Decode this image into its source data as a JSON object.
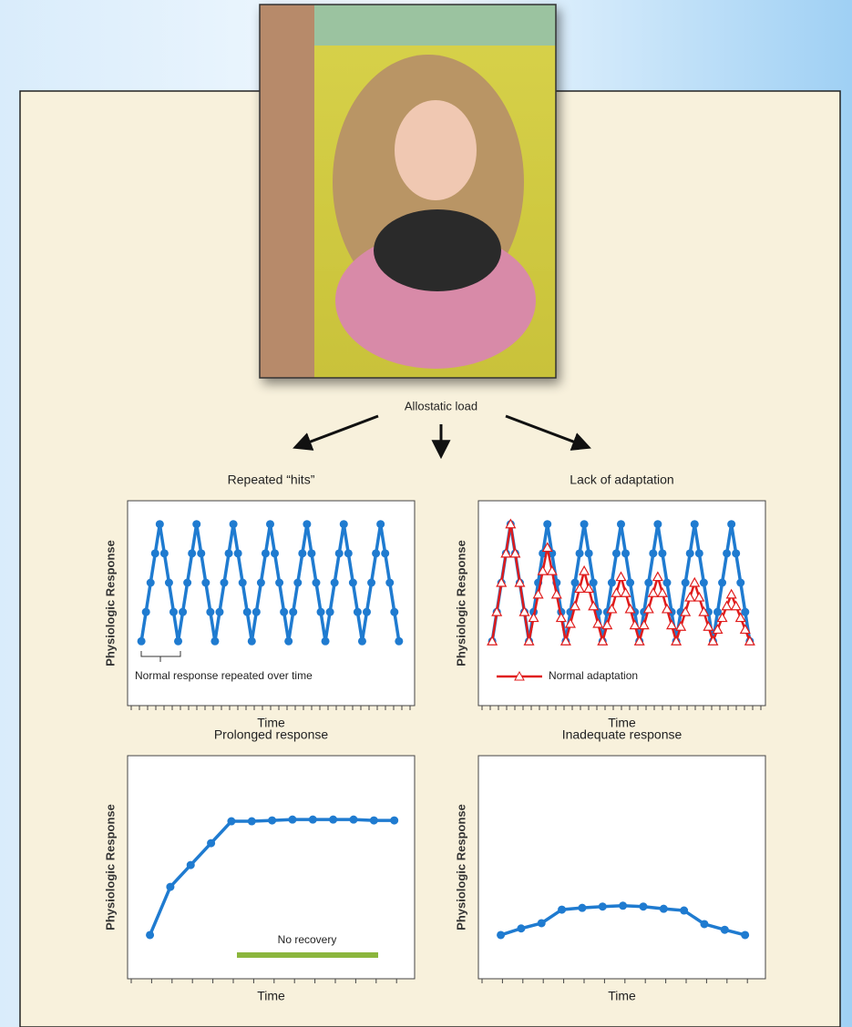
{
  "figure": {
    "label": "Allostatic load"
  },
  "chart_data": [
    {
      "type": "line",
      "title": "Repeated “hits”",
      "x_label": "Time",
      "y_label": "Physiologic Response",
      "annotation": "Normal response repeated over time",
      "x": [
        0,
        1,
        2,
        3,
        4,
        5,
        6,
        7,
        8,
        9,
        10,
        11,
        12,
        13,
        14,
        15,
        16,
        17,
        18,
        19,
        20,
        21,
        22,
        23,
        24,
        25,
        26,
        27,
        28,
        29,
        30,
        31,
        32,
        33,
        34,
        35,
        36,
        37,
        38,
        39,
        40,
        41,
        42,
        43,
        44,
        45,
        46,
        47,
        48,
        49,
        50,
        51,
        52,
        53,
        54,
        55,
        56
      ],
      "xlim": [
        -3,
        59.4
      ],
      "ylim": [
        -1.2,
        5.8
      ],
      "series": [
        {
          "color": "#1f7bd0",
          "marker": "circle",
          "values": [
            1,
            2,
            3,
            4,
            5,
            4,
            3,
            2,
            1,
            2,
            3,
            4,
            5,
            4,
            3,
            2,
            1,
            2,
            3,
            4,
            5,
            4,
            3,
            2,
            1,
            2,
            3,
            4,
            5,
            4,
            3,
            2,
            1,
            2,
            3,
            4,
            5,
            4,
            3,
            2,
            1,
            2,
            3,
            4,
            5,
            4,
            3,
            2,
            1,
            2,
            3,
            4,
            5,
            4,
            3,
            2,
            1
          ]
        }
      ]
    },
    {
      "type": "line",
      "title": "Lack of adaptation",
      "x_label": "Time",
      "y_label": "Physiologic Response",
      "legend": "bottom-left",
      "x": [
        0,
        1,
        2,
        3,
        4,
        5,
        6,
        7,
        8,
        9,
        10,
        11,
        12,
        13,
        14,
        15,
        16,
        17,
        18,
        19,
        20,
        21,
        22,
        23,
        24,
        25,
        26,
        27,
        28,
        29,
        30,
        31,
        32,
        33,
        34,
        35,
        36,
        37,
        38,
        39,
        40,
        41,
        42,
        43,
        44,
        45,
        46,
        47,
        48,
        49,
        50,
        51,
        52,
        53,
        54,
        55,
        56
      ],
      "xlim": [
        -3,
        59.4
      ],
      "ylim": [
        -1.2,
        5.8
      ],
      "series": [
        {
          "color": "#1f7bd0",
          "marker": "circle",
          "values": [
            1,
            2,
            3,
            4,
            5,
            4,
            3,
            2,
            1,
            2,
            3,
            4,
            5,
            4,
            3,
            2,
            1,
            2,
            3,
            4,
            5,
            4,
            3,
            2,
            1,
            2,
            3,
            4,
            5,
            4,
            3,
            2,
            1,
            2,
            3,
            4,
            5,
            4,
            3,
            2,
            1,
            2,
            3,
            4,
            5,
            4,
            3,
            2,
            1,
            2,
            3,
            4,
            5,
            4,
            3,
            2,
            1
          ]
        },
        {
          "name": "Normal adaptation",
          "color": "#e01b1b",
          "marker": "triangle",
          "values": [
            1,
            2,
            3,
            4,
            5,
            4,
            3,
            2,
            1,
            1.8,
            2.6,
            3.4,
            4.2,
            3.4,
            2.6,
            1.8,
            1,
            1.6,
            2.2,
            2.8,
            3.4,
            2.8,
            2.2,
            1.6,
            1,
            1.55,
            2.1,
            2.65,
            3.2,
            2.65,
            2.1,
            1.55,
            1,
            1.55,
            2.1,
            2.65,
            3.2,
            2.65,
            2.1,
            1.55,
            1,
            1.5,
            2,
            2.5,
            3,
            2.5,
            2,
            1.5,
            1,
            1.4,
            1.8,
            2.2,
            2.6,
            2.2,
            1.8,
            1.4,
            1
          ]
        }
      ]
    },
    {
      "type": "line",
      "title": "Prolonged response",
      "x_label": "Time",
      "y_label": "Physiologic Response",
      "annotation": "No recovery",
      "x": [
        0,
        1,
        2,
        3,
        4,
        5,
        6,
        7,
        8,
        9,
        10,
        11,
        12
      ],
      "xlim": [
        -1.1,
        13
      ],
      "ylim": [
        0,
        5.1
      ],
      "series": [
        {
          "color": "#1f7bd0",
          "marker": "circle",
          "values": [
            1,
            2.1,
            2.6,
            3.1,
            3.6,
            3.6,
            3.62,
            3.64,
            3.64,
            3.64,
            3.64,
            3.62,
            3.62
          ]
        }
      ]
    },
    {
      "type": "line",
      "title": "Inadequate response",
      "x_label": "Time",
      "y_label": "Physiologic Response",
      "x": [
        0,
        1,
        2,
        3,
        4,
        5,
        6,
        7,
        8,
        9,
        10,
        11,
        12
      ],
      "xlim": [
        -1.1,
        13
      ],
      "ylim": [
        0,
        5.1
      ],
      "series": [
        {
          "color": "#1f7bd0",
          "marker": "circle",
          "values": [
            1,
            1.15,
            1.27,
            1.58,
            1.62,
            1.65,
            1.67,
            1.65,
            1.6,
            1.56,
            1.25,
            1.12,
            1
          ]
        }
      ]
    }
  ]
}
